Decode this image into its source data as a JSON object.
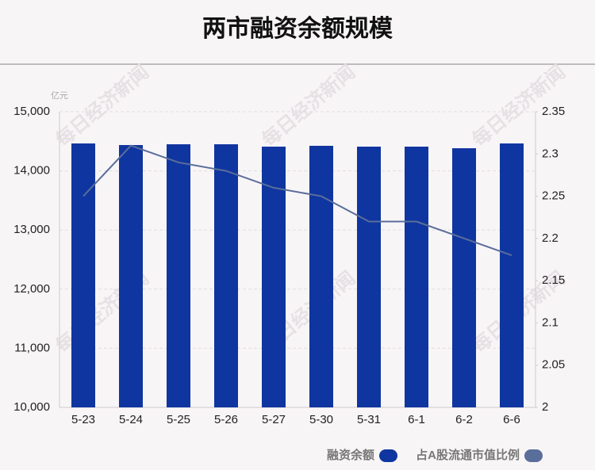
{
  "chart_data": {
    "type": "bar_line",
    "title": "两市融资余额规模",
    "y_unit": "亿元",
    "watermark": "每日经济新闻",
    "categories": [
      "5-23",
      "5-24",
      "5-25",
      "5-26",
      "5-27",
      "5-30",
      "5-31",
      "6-1",
      "6-2",
      "6-6"
    ],
    "series": [
      {
        "name": "融资余额",
        "color": "#0f35a0",
        "values": [
          14464,
          14437,
          14450,
          14450,
          14410,
          14424,
          14410,
          14410,
          14383,
          14464
        ]
      },
      {
        "name": "占A股流通市值比例",
        "color": "#5a6e9a",
        "axis": "y2",
        "values": [
          2.25,
          2.31,
          2.29,
          2.28,
          2.26,
          2.25,
          2.22,
          2.22,
          2.2,
          2.18
        ]
      }
    ],
    "ylim": [
      10000,
      15000
    ],
    "yticks": [
      {
        "value": 10000,
        "label": "10,000"
      },
      {
        "value": 11000,
        "label": "11,000"
      },
      {
        "value": 12000,
        "label": "12,000"
      },
      {
        "value": 13000,
        "label": "13,000"
      },
      {
        "value": 14000,
        "label": "14,000"
      },
      {
        "value": 15000,
        "label": "15,000"
      }
    ],
    "y2lim": [
      2,
      2.35
    ],
    "y2ticks": [
      2,
      2.05,
      2.1,
      2.15,
      2.2,
      2.25,
      2.3,
      2.35
    ],
    "grid": true
  }
}
